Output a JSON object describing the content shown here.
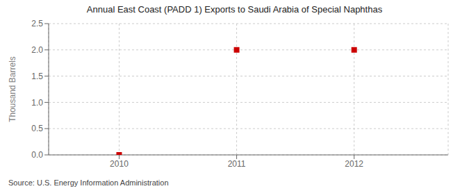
{
  "chart_data": {
    "type": "scatter",
    "title": "Annual East Coast (PADD 1) Exports to Saudi Arabia of Special Naphthas",
    "y_label": "Thousand Barrels",
    "source": "Source: U.S. Energy Information Administration",
    "x": [
      2010,
      2011,
      2012
    ],
    "values": [
      0,
      2.0,
      2.0
    ],
    "color": "#CC0000",
    "marker": "square",
    "xlim": [
      2009.4,
      2012.8
    ],
    "ylim": [
      0.0,
      2.5
    ],
    "xticks": [
      2010,
      2011,
      2012
    ],
    "yticks": [
      {
        "value": 0.0,
        "label": "0.0"
      },
      0.5,
      {
        "value": 1.0,
        "label": "1.0"
      },
      1.5,
      {
        "value": 2.0,
        "label": "2.0"
      },
      2.5
    ],
    "grid": true
  }
}
